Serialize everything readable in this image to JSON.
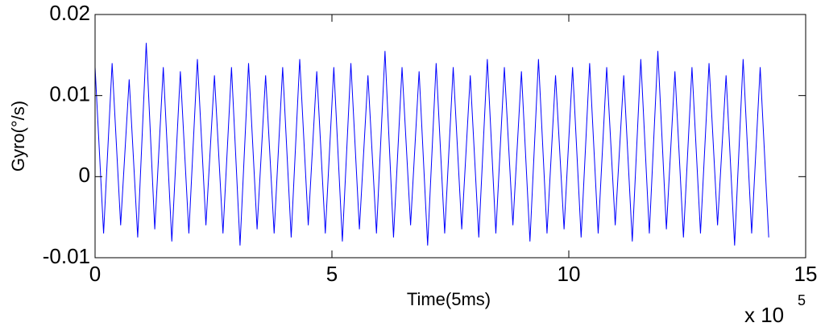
{
  "chart_data": {
    "type": "line",
    "xlabel": "Time(5ms)",
    "ylabel": "Gyro(°/s)",
    "x_multiplier": "x 10",
    "x_exponent": "5",
    "x": [
      0,
      18000,
      36000,
      54000,
      72000,
      90000,
      108000,
      126000,
      144000,
      162000,
      180000,
      198000,
      216000,
      234000,
      252000,
      270000,
      288000,
      306000,
      324000,
      342000,
      360000,
      378000,
      396000,
      414000,
      432000,
      450000,
      468000,
      486000,
      504000,
      522000,
      540000,
      558000,
      576000,
      594000,
      612000,
      630000,
      648000,
      666000,
      684000,
      702000,
      720000,
      738000,
      756000,
      774000,
      792000,
      810000,
      828000,
      846000,
      864000,
      882000,
      900000,
      918000,
      936000,
      954000,
      972000,
      990000,
      1008000,
      1026000,
      1044000,
      1062000,
      1080000,
      1098000,
      1116000,
      1134000,
      1152000,
      1170000,
      1188000,
      1206000,
      1224000,
      1242000,
      1260000,
      1278000,
      1296000,
      1314000,
      1332000,
      1350000,
      1368000,
      1386000,
      1404000,
      1422000
    ],
    "series": [
      {
        "color": "#0000ff",
        "values": [
          0.0135,
          -0.007,
          0.014,
          -0.006,
          0.012,
          -0.0075,
          0.0165,
          -0.0065,
          0.0135,
          -0.008,
          0.013,
          -0.007,
          0.0145,
          -0.006,
          0.0125,
          -0.007,
          0.0135,
          -0.0085,
          0.014,
          -0.0065,
          0.0125,
          -0.007,
          0.0135,
          -0.0075,
          0.0145,
          -0.006,
          0.013,
          -0.007,
          0.0135,
          -0.008,
          0.014,
          -0.0065,
          0.0125,
          -0.007,
          0.0155,
          -0.0075,
          0.0135,
          -0.006,
          0.013,
          -0.0085,
          0.014,
          -0.007,
          0.0135,
          -0.0065,
          0.0125,
          -0.0075,
          0.0145,
          -0.007,
          0.0135,
          -0.006,
          0.013,
          -0.008,
          0.0145,
          -0.007,
          0.0125,
          -0.0065,
          0.0135,
          -0.0075,
          0.014,
          -0.007,
          0.0135,
          -0.006,
          0.0125,
          -0.008,
          0.0145,
          -0.007,
          0.0155,
          -0.0065,
          0.013,
          -0.0075,
          0.0135,
          -0.007,
          0.014,
          -0.006,
          0.0125,
          -0.0085,
          0.0145,
          -0.007,
          0.0135,
          -0.0075
        ]
      }
    ],
    "xlim": [
      0,
      1500000
    ],
    "xticks": [
      0,
      {
        "value": 500000,
        "label": "5"
      },
      {
        "value": 1000000,
        "label": "10"
      },
      {
        "value": 1500000,
        "label": "15"
      }
    ],
    "ylim": [
      -0.01,
      0.02
    ],
    "yticks": [
      -0.01,
      0,
      0.01,
      0.02
    ]
  }
}
